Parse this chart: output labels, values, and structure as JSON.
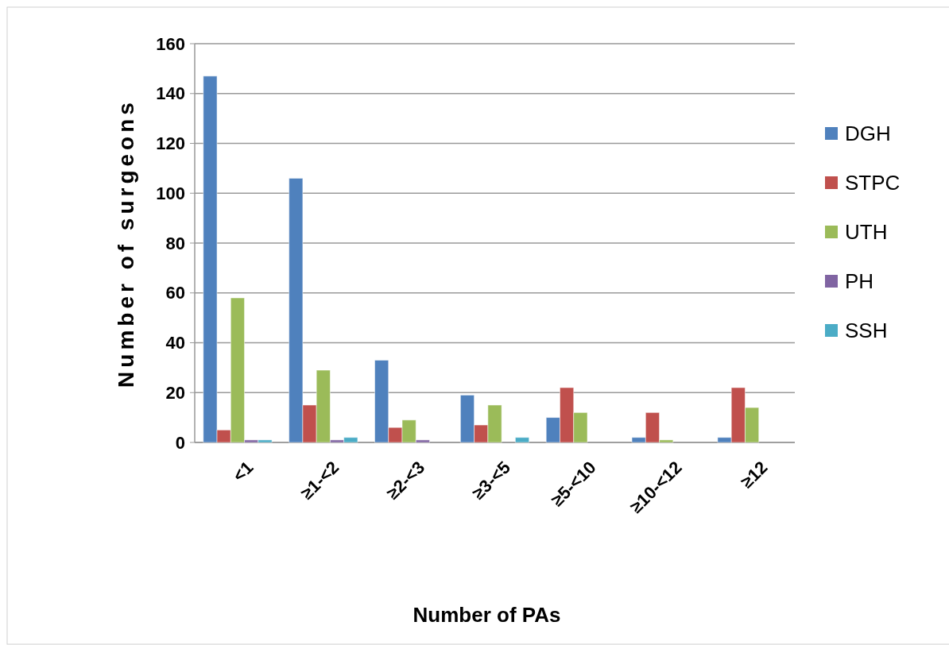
{
  "chart_data": {
    "type": "bar",
    "xlabel": "Number of PAs",
    "ylabel": "Number of surgeons",
    "categories": [
      "<1",
      "≥1-<2",
      "≥2-<3",
      "≥3-<5",
      "≥5-<10",
      "≥10-<12",
      "≥12"
    ],
    "series": [
      {
        "name": "DGH",
        "color": "#4f81bd",
        "values": [
          147,
          106,
          33,
          19,
          10,
          2,
          2
        ]
      },
      {
        "name": "STPC",
        "color": "#c0504d",
        "values": [
          5,
          15,
          6,
          7,
          22,
          12,
          22
        ]
      },
      {
        "name": "UTH",
        "color": "#9bbb59",
        "values": [
          58,
          29,
          9,
          15,
          12,
          1,
          14
        ]
      },
      {
        "name": "PH",
        "color": "#8064a2",
        "values": [
          1,
          1,
          1,
          null,
          null,
          null,
          null
        ]
      },
      {
        "name": "SSH",
        "color": "#4bacc6",
        "values": [
          1,
          2,
          null,
          2,
          null,
          null,
          null
        ]
      }
    ],
    "ylim": [
      0,
      160
    ],
    "yticks": [
      0,
      20,
      40,
      60,
      80,
      100,
      120,
      140,
      160
    ],
    "grid": "y",
    "legend": "right"
  }
}
